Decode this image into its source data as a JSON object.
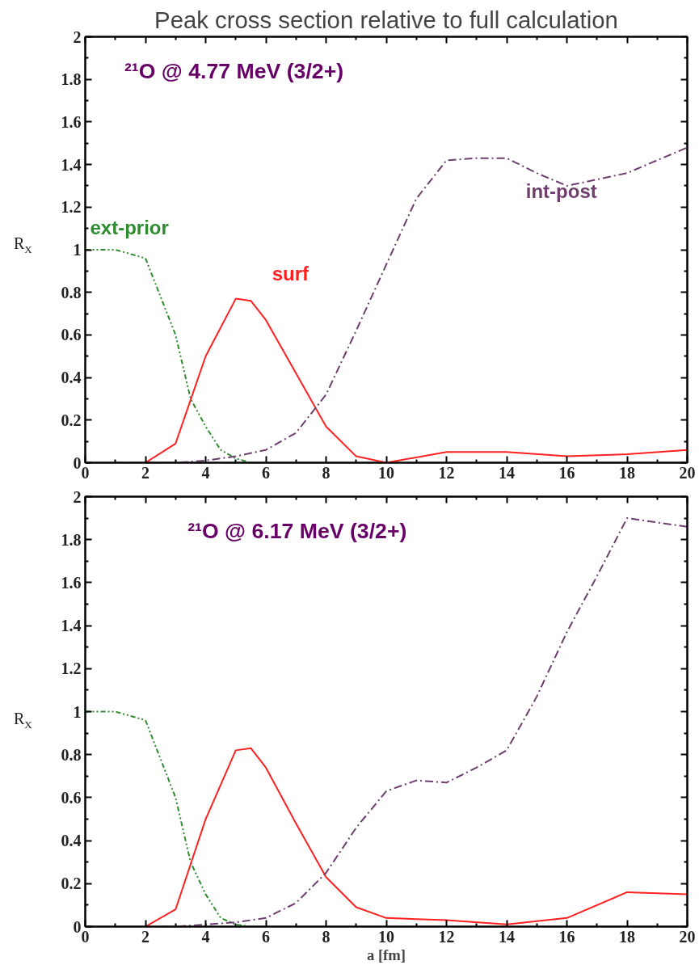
{
  "chart_data": [
    {
      "type": "line",
      "title": "Peak cross section relative to full calculation",
      "ylabel": "R$_{X}$",
      "annotations": [
        "²¹O @ 4.77 MeV (3/2+)"
      ],
      "xlim": [
        0,
        20
      ],
      "ylim": [
        0,
        2
      ],
      "xticks": [
        0,
        2,
        4,
        6,
        8,
        10,
        12,
        14,
        16,
        18,
        20
      ],
      "yticks": [
        0,
        0.2,
        0.4,
        0.6,
        0.8,
        1,
        1.2,
        1.4,
        1.6,
        1.8,
        2
      ],
      "grid": false,
      "marker": "none",
      "series": [
        {
          "name": "ext-prior",
          "color": "#2e8b2e",
          "line_style": "dotted",
          "x": [
            0,
            1,
            2,
            3,
            3.5,
            4,
            4.5,
            5,
            5.5
          ],
          "values": [
            1.0,
            1.0,
            0.96,
            0.6,
            0.3,
            0.17,
            0.06,
            0.02,
            0
          ]
        },
        {
          "name": "surf",
          "color": "#ff2020",
          "line_style": "solid",
          "x": [
            2,
            3,
            4,
            5,
            5.5,
            6,
            7,
            8,
            9,
            10,
            12,
            14,
            16,
            18,
            20
          ],
          "values": [
            0,
            0.09,
            0.5,
            0.77,
            0.76,
            0.67,
            0.42,
            0.17,
            0.03,
            0,
            0.05,
            0.05,
            0.03,
            0.04,
            0.06
          ]
        },
        {
          "name": "int-post",
          "color": "#6e3f6e",
          "line_style": "dashed",
          "x": [
            1,
            2,
            3,
            4,
            5,
            6,
            7,
            8,
            9,
            10,
            11,
            12,
            13,
            14,
            15,
            16,
            17,
            18,
            19,
            20
          ],
          "values": [
            0,
            0,
            0,
            0.01,
            0.03,
            0.06,
            0.14,
            0.32,
            0.62,
            0.93,
            1.24,
            1.42,
            1.43,
            1.43,
            1.36,
            1.3,
            1.33,
            1.36,
            1.42,
            1.48
          ]
        }
      ]
    },
    {
      "type": "line",
      "xlabel": "a [fm]",
      "ylabel": "R$_{X}$",
      "annotations": [
        "²¹O @ 6.17 MeV (3/2+)"
      ],
      "xlim": [
        0,
        20
      ],
      "ylim": [
        0,
        2
      ],
      "xticks": [
        0,
        2,
        4,
        6,
        8,
        10,
        12,
        14,
        16,
        18,
        20
      ],
      "yticks": [
        0,
        0.2,
        0.4,
        0.6,
        0.8,
        1,
        1.2,
        1.4,
        1.6,
        1.8,
        2
      ],
      "grid": false,
      "marker": "none",
      "series": [
        {
          "color": "#2e8b2e",
          "line_style": "dotted",
          "x": [
            0,
            1,
            2,
            3,
            3.5,
            4,
            4.5,
            5,
            5.5
          ],
          "values": [
            1.0,
            1.0,
            0.96,
            0.6,
            0.3,
            0.15,
            0.04,
            0.01,
            0
          ]
        },
        {
          "color": "#ff2020",
          "line_style": "solid",
          "x": [
            2,
            3,
            4,
            5,
            5.5,
            6,
            7,
            8,
            9,
            10,
            12,
            14,
            16,
            18,
            20
          ],
          "values": [
            0,
            0.08,
            0.5,
            0.82,
            0.83,
            0.74,
            0.48,
            0.23,
            0.09,
            0.04,
            0.03,
            0.01,
            0.04,
            0.16,
            0.15
          ]
        },
        {
          "color": "#6e3f6e",
          "line_style": "dashed",
          "x": [
            2,
            3,
            4,
            5,
            6,
            7,
            8,
            9,
            10,
            11,
            12,
            13,
            14,
            15,
            16,
            17,
            18,
            20
          ],
          "values": [
            0,
            0,
            0.01,
            0.02,
            0.04,
            0.11,
            0.25,
            0.46,
            0.63,
            0.68,
            0.67,
            0.74,
            0.82,
            1.07,
            1.37,
            1.63,
            1.9,
            1.86
          ]
        }
      ]
    }
  ]
}
